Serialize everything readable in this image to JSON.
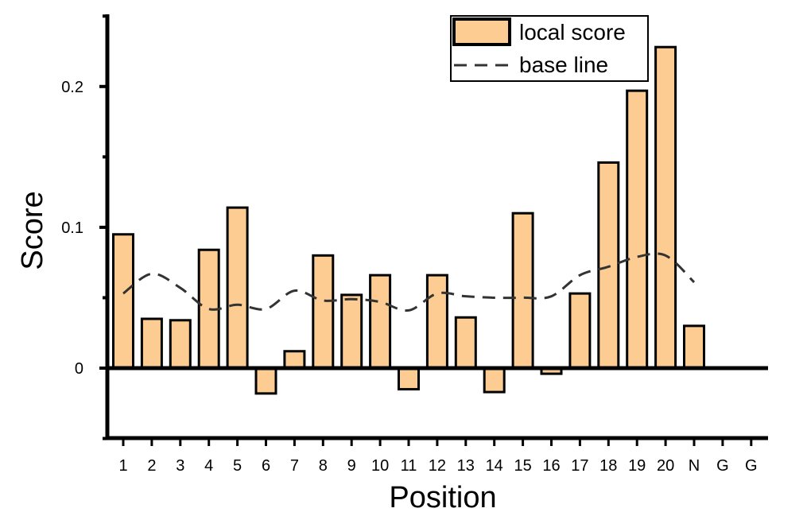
{
  "chart_data": {
    "type": "bar",
    "title": "",
    "xlabel": "Position",
    "ylabel": "Score",
    "categories": [
      "1",
      "2",
      "3",
      "4",
      "5",
      "6",
      "7",
      "8",
      "9",
      "10",
      "11",
      "12",
      "13",
      "14",
      "15",
      "16",
      "17",
      "18",
      "19",
      "20",
      "N",
      "G",
      "G"
    ],
    "series": [
      {
        "name": "local score",
        "type": "bar",
        "values": [
          0.095,
          0.035,
          0.034,
          0.084,
          0.114,
          -0.018,
          0.012,
          0.08,
          0.052,
          0.066,
          -0.015,
          0.066,
          0.036,
          -0.017,
          0.11,
          -0.004,
          0.053,
          0.146,
          0.197,
          0.228,
          0.03,
          null,
          null
        ]
      },
      {
        "name": "base line",
        "type": "line",
        "style": "dashed",
        "values": [
          0.053,
          0.067,
          0.057,
          0.042,
          0.045,
          0.042,
          0.055,
          0.048,
          0.049,
          0.047,
          0.041,
          0.053,
          0.051,
          0.05,
          0.05,
          0.051,
          0.066,
          0.072,
          0.079,
          0.08,
          0.061,
          null,
          null
        ]
      }
    ],
    "yticks": [
      "0",
      "0.1",
      "0.2"
    ],
    "ylim": [
      -0.05,
      0.25
    ],
    "grid": false,
    "legend_position": "top-right",
    "colors": {
      "bar_fill": "#FDCC92",
      "bar_stroke": "#000000",
      "line": "#333333"
    }
  }
}
